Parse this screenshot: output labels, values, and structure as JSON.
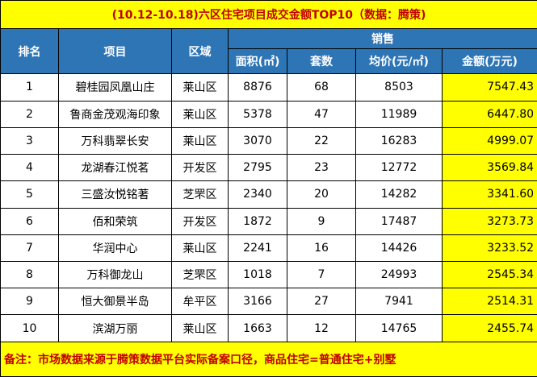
{
  "title": "(10.12-10.18)六区住宅项目成交金额TOP10（数据：腾策)",
  "table": {
    "headers": [
      "排名",
      "项目",
      "区域",
      "销售"
    ],
    "sub_headers": [
      "面积(㎡)",
      "套数",
      "均价(元/㎡)",
      "金额(万元)"
    ],
    "rows": [
      [
        "1",
        "碧桂园凤凰山庄",
        "莱山区",
        "8876",
        "68",
        "8503",
        "7547.43"
      ],
      [
        "2",
        "鲁商金茂观海印象",
        "莱山区",
        "5378",
        "47",
        "11989",
        "6447.80"
      ],
      [
        "3",
        "万科翡翠长安",
        "莱山区",
        "3070",
        "22",
        "16283",
        "4999.07"
      ],
      [
        "4",
        "龙湖春江悦茗",
        "开发区",
        "2795",
        "23",
        "12772",
        "3569.84"
      ],
      [
        "5",
        "三盛汝悦铭著",
        "芝罘区",
        "2340",
        "20",
        "14282",
        "3341.60"
      ],
      [
        "6",
        "佰和荣筑",
        "开发区",
        "1872",
        "9",
        "17487",
        "3273.73"
      ],
      [
        "7",
        "华润中心",
        "莱山区",
        "2241",
        "16",
        "14426",
        "3233.52"
      ],
      [
        "8",
        "万科御龙山",
        "芝罘区",
        "1018",
        "7",
        "24993",
        "2545.34"
      ],
      [
        "9",
        "恒大御景半岛",
        "牟平区",
        "3166",
        "27",
        "7941",
        "2514.31"
      ],
      [
        "10",
        "滨湖万丽",
        "莱山区",
        "1663",
        "12",
        "14765",
        "2455.74"
      ]
    ]
  },
  "footer": "备注：市场数据来源于腾策数据平台实际备案口径，商品住宅=普通住宅+别墅"
}
